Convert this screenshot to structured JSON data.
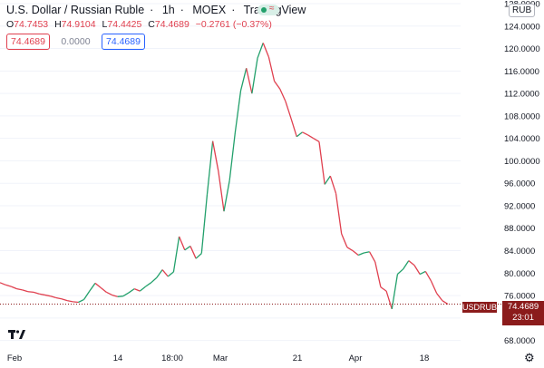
{
  "header": {
    "symbol_name": "U.S. Dollar / Russian Ruble",
    "interval": "1h",
    "exchange": "MOEX",
    "brand": "TradingView",
    "ohlc": {
      "o_label": "O",
      "o_value": "74.7453",
      "h_label": "H",
      "h_value": "74.9104",
      "l_label": "L",
      "l_value": "74.4425",
      "c_label": "C",
      "c_value": "74.4689",
      "change": "−0.2761 (−0.37%)"
    },
    "live_wave_icon": "≈"
  },
  "pills": {
    "bid": "74.4689",
    "spread": "0.0000",
    "ask": "74.4689"
  },
  "currency_button": "RUB",
  "price_tag": {
    "ticker": "USDRUB",
    "price": "74.4689",
    "countdown": "23:01"
  },
  "icons": {
    "logo": "tradingview-logo-icon",
    "settings": "gear-icon",
    "live": "live-status-icon"
  },
  "colors": {
    "up": "#22a06b",
    "down": "#e0404f",
    "price_tag": "#8b1b1b",
    "accent_blue": "#2962ff"
  },
  "chart_data": {
    "type": "candlestick-line",
    "ylim": [
      66,
      128
    ],
    "y_ticks": [
      "128.0000",
      "124.0000",
      "120.0000",
      "116.0000",
      "112.0000",
      "108.0000",
      "104.0000",
      "100.0000",
      "96.0000",
      "92.0000",
      "88.0000",
      "84.0000",
      "80.0000",
      "76.0000",
      "72.0000",
      "68.0000"
    ],
    "x_ticks": [
      "Feb",
      "14",
      "18:00",
      "Mar",
      "21",
      "Apr",
      "18"
    ],
    "last_price": 74.4689,
    "series": [
      {
        "values": [
          78.3,
          77.9,
          77.6,
          77.2,
          77.0,
          76.7,
          76.6,
          76.3,
          76.1,
          75.9,
          75.6,
          75.4,
          75.1,
          74.9,
          74.8,
          75.3,
          76.8,
          78.2,
          77.4,
          76.6,
          76.1,
          75.8,
          75.9,
          76.5,
          77.2,
          76.8,
          77.6,
          78.3,
          79.2,
          80.6,
          79.4,
          80.2,
          86.5,
          84.1,
          84.8,
          82.6,
          83.5,
          94.0,
          103.5,
          98.2,
          91.0,
          96.5,
          105.0,
          112.5,
          116.5,
          112.0,
          118.3,
          121.0,
          118.5,
          114.2,
          112.8,
          110.6,
          107.5,
          104.3,
          105.1,
          104.6,
          104.0,
          103.4,
          95.8,
          97.3,
          94.2,
          87.0,
          84.6,
          84.0,
          83.2,
          83.6,
          83.8,
          82.0,
          77.5,
          76.8,
          73.6,
          79.8,
          80.7,
          82.2,
          81.4,
          79.8,
          80.3,
          78.6,
          76.4,
          75.1,
          74.47
        ]
      }
    ]
  }
}
